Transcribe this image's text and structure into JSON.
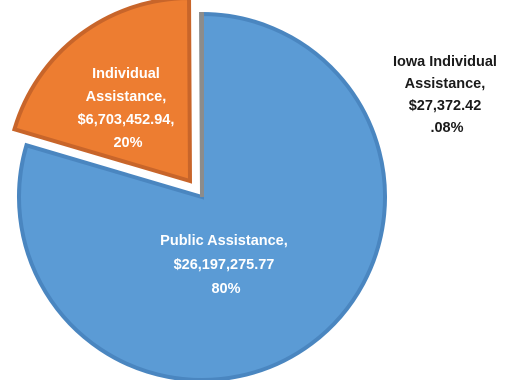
{
  "chart_data": {
    "type": "pie",
    "title": "",
    "start_angle_deg": 0,
    "slices": [
      {
        "label_lines": [
          "Public Assistance,",
          "$26,197,275.77",
          "80%"
        ],
        "value": 26197275.77,
        "percent_label": "80%",
        "color": "#5b9bd5",
        "edge_color": "#4a86c0",
        "exploded": false
      },
      {
        "label_lines": [
          "Individual",
          "Assistance,",
          "$6,703,452.94,",
          "20%"
        ],
        "value": 6703452.94,
        "percent_label": "20%",
        "color": "#ed7d31",
        "edge_color": "#c8652a",
        "exploded": true
      },
      {
        "label_lines": [
          "Iowa Individual",
          "Assistance,",
          "$27,372.42",
          ".08%"
        ],
        "value": 27372.42,
        "percent_label": ".08%",
        "color": "#a5a5a5",
        "edge_color": "#8c8c8c",
        "exploded": false
      }
    ]
  }
}
